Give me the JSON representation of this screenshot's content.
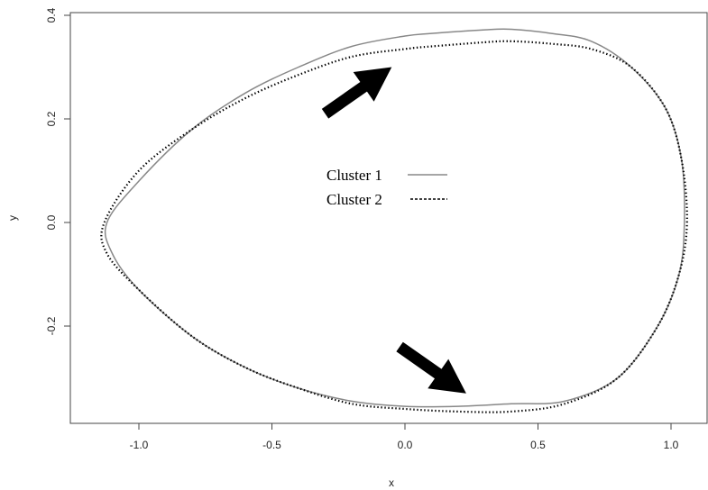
{
  "chart_data": {
    "type": "line",
    "title": "",
    "xlabel": "x",
    "ylabel": "y",
    "xlim": [
      -1.25,
      1.13
    ],
    "ylim": [
      -0.39,
      0.4
    ],
    "x_ticks": [
      -1.0,
      -0.5,
      0.0,
      0.5,
      1.0
    ],
    "x_tick_labels": [
      "-1.0",
      "-0.5",
      "0.0",
      "0.5",
      "1.0"
    ],
    "y_ticks": [
      -0.2,
      0.0,
      0.2,
      0.4
    ],
    "y_tick_labels": [
      "-0.2",
      "0.0",
      "0.2",
      "0.4"
    ],
    "grid": false,
    "legend_position": "center",
    "series": [
      {
        "name": "Cluster 1",
        "style": "solid",
        "color": "#888888",
        "closed": true,
        "points": [
          [
            1.05,
            0.0
          ],
          [
            1.04,
            0.12
          ],
          [
            0.98,
            0.22
          ],
          [
            0.85,
            0.3
          ],
          [
            0.7,
            0.35
          ],
          [
            0.55,
            0.365
          ],
          [
            0.4,
            0.373
          ],
          [
            0.3,
            0.372
          ],
          [
            0.1,
            0.365
          ],
          [
            0.0,
            0.36
          ],
          [
            -0.2,
            0.34
          ],
          [
            -0.4,
            0.3
          ],
          [
            -0.6,
            0.25
          ],
          [
            -0.8,
            0.18
          ],
          [
            -1.0,
            0.08
          ],
          [
            -1.12,
            0.0
          ],
          [
            -1.1,
            -0.06
          ],
          [
            -1.0,
            -0.13
          ],
          [
            -0.8,
            -0.22
          ],
          [
            -0.6,
            -0.28
          ],
          [
            -0.4,
            -0.32
          ],
          [
            -0.2,
            -0.345
          ],
          [
            0.0,
            -0.355
          ],
          [
            0.2,
            -0.355
          ],
          [
            0.4,
            -0.35
          ],
          [
            0.6,
            -0.345
          ],
          [
            0.8,
            -0.3
          ],
          [
            0.95,
            -0.2
          ],
          [
            1.03,
            -0.1
          ]
        ]
      },
      {
        "name": "Cluster 2",
        "style": "dotted",
        "color": "#000000",
        "closed": true,
        "points": [
          [
            1.06,
            0.0
          ],
          [
            1.04,
            0.12
          ],
          [
            0.98,
            0.22
          ],
          [
            0.85,
            0.3
          ],
          [
            0.7,
            0.335
          ],
          [
            0.55,
            0.345
          ],
          [
            0.4,
            0.35
          ],
          [
            0.3,
            0.348
          ],
          [
            0.1,
            0.34
          ],
          [
            0.0,
            0.335
          ],
          [
            -0.2,
            0.32
          ],
          [
            -0.4,
            0.285
          ],
          [
            -0.6,
            0.24
          ],
          [
            -0.8,
            0.18
          ],
          [
            -1.0,
            0.1
          ],
          [
            -1.13,
            0.0
          ],
          [
            -1.12,
            -0.06
          ],
          [
            -1.0,
            -0.13
          ],
          [
            -0.8,
            -0.22
          ],
          [
            -0.6,
            -0.28
          ],
          [
            -0.4,
            -0.32
          ],
          [
            -0.2,
            -0.35
          ],
          [
            0.0,
            -0.36
          ],
          [
            0.2,
            -0.365
          ],
          [
            0.4,
            -0.365
          ],
          [
            0.6,
            -0.35
          ],
          [
            0.8,
            -0.3
          ],
          [
            0.95,
            -0.2
          ],
          [
            1.03,
            -0.1
          ]
        ]
      }
    ],
    "annotations": [
      {
        "type": "arrow",
        "from": [
          -0.3,
          0.21
        ],
        "to": [
          -0.05,
          0.3
        ]
      },
      {
        "type": "arrow",
        "from": [
          -0.02,
          -0.24
        ],
        "to": [
          0.23,
          -0.33
        ]
      }
    ]
  }
}
